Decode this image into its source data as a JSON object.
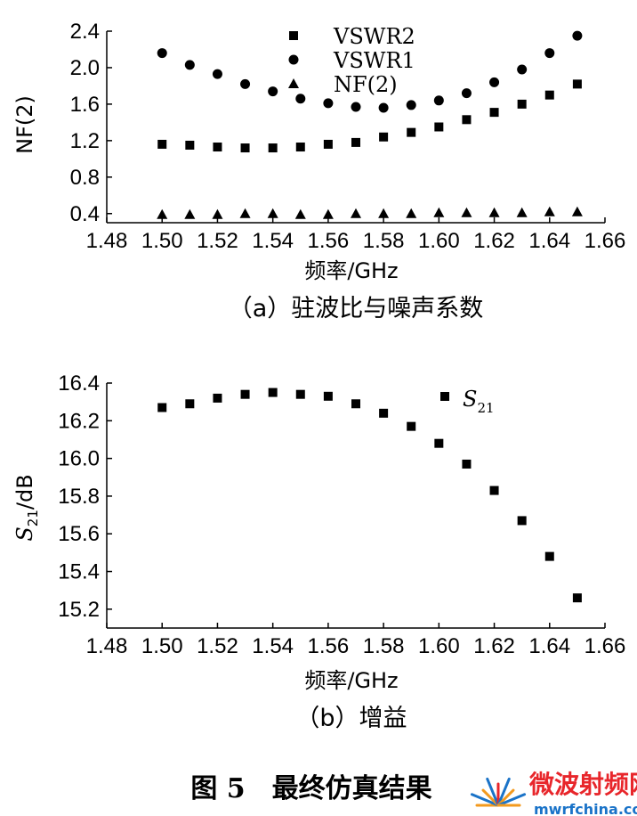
{
  "chart_data": [
    {
      "type": "scatter",
      "panel": "(a)",
      "caption": "（a）驻波比与噪声系数",
      "xlabel": "频率/GHz",
      "ylabel": "NF(2)",
      "xlim": [
        1.48,
        1.66
      ],
      "ylim": [
        0.3,
        2.4
      ],
      "xticks": [
        "1.48",
        "1.50",
        "1.52",
        "1.54",
        "1.56",
        "1.58",
        "1.60",
        "1.62",
        "1.64",
        "1.66"
      ],
      "yticks": [
        "0.4",
        "0.8",
        "1.2",
        "1.6",
        "2.0",
        "2.4"
      ],
      "x": [
        1.5,
        1.51,
        1.52,
        1.53,
        1.54,
        1.55,
        1.56,
        1.57,
        1.58,
        1.59,
        1.6,
        1.61,
        1.62,
        1.63,
        1.64,
        1.65
      ],
      "series": [
        {
          "name": "VSWR2",
          "marker": "square",
          "values": [
            1.16,
            1.15,
            1.13,
            1.12,
            1.12,
            1.13,
            1.16,
            1.18,
            1.24,
            1.29,
            1.35,
            1.43,
            1.51,
            1.6,
            1.7,
            1.82
          ]
        },
        {
          "name": "VSWR1",
          "marker": "circle",
          "values": [
            2.16,
            2.03,
            1.93,
            1.82,
            1.74,
            1.66,
            1.61,
            1.57,
            1.56,
            1.59,
            1.64,
            1.72,
            1.84,
            1.98,
            2.16,
            2.35
          ]
        },
        {
          "name": "NF(2)",
          "marker": "triangle",
          "values": [
            0.39,
            0.39,
            0.39,
            0.4,
            0.4,
            0.39,
            0.39,
            0.4,
            0.4,
            0.4,
            0.41,
            0.41,
            0.41,
            0.41,
            0.42,
            0.42
          ]
        }
      ],
      "legend_position": "top-center"
    },
    {
      "type": "scatter",
      "panel": "(b)",
      "caption": "（b）增益",
      "xlabel": "频率/GHz",
      "ylabel_main": "S",
      "ylabel_sub": "21",
      "ylabel_unit": "/dB",
      "xlim": [
        1.48,
        1.66
      ],
      "ylim": [
        15.1,
        16.4
      ],
      "xticks": [
        "1.48",
        "1.50",
        "1.52",
        "1.54",
        "1.56",
        "1.58",
        "1.60",
        "1.62",
        "1.64",
        "1.66"
      ],
      "yticks": [
        "15.2",
        "15.4",
        "15.6",
        "15.8",
        "16.0",
        "16.2",
        "16.4"
      ],
      "x": [
        1.5,
        1.51,
        1.52,
        1.53,
        1.54,
        1.55,
        1.56,
        1.57,
        1.58,
        1.59,
        1.6,
        1.61,
        1.62,
        1.63,
        1.64,
        1.65
      ],
      "series": [
        {
          "name": "S21",
          "name_main": "S",
          "name_sub": "21",
          "marker": "square",
          "values": [
            16.27,
            16.29,
            16.32,
            16.34,
            16.35,
            16.34,
            16.33,
            16.29,
            16.24,
            16.17,
            16.08,
            15.97,
            15.83,
            15.67,
            15.48,
            15.26
          ]
        }
      ],
      "legend_position": "top-right"
    }
  ],
  "figure_caption": "图 5　最终仿真结果",
  "watermark": {
    "cn": "微波射频网",
    "url": "mwrfchina.com",
    "color_red": "#e8262b",
    "color_blue": "#1a73c8",
    "color_orange": "#f39a1e"
  },
  "colors": {
    "ink": "#000000",
    "background": "#ffffff"
  }
}
